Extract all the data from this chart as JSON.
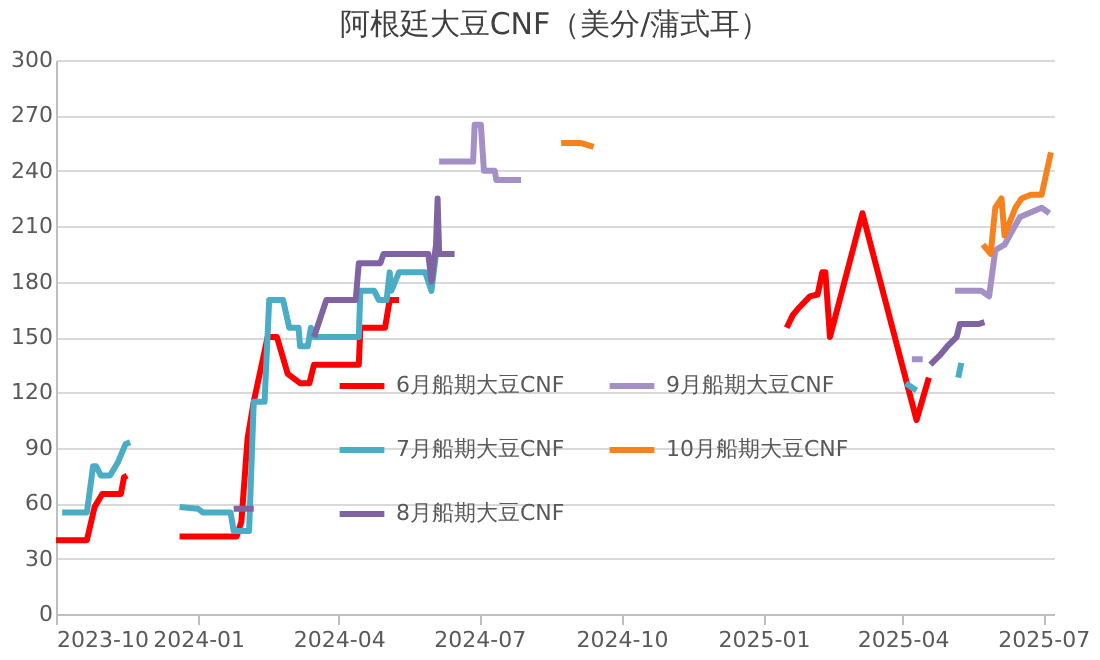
{
  "chart_data": {
    "type": "line",
    "title": "阿根廷大豆CNF（美分/蒲式耳）",
    "xlim": [
      "2023-10-01",
      "2025-07-08"
    ],
    "xticks": [
      "2023-10",
      "2024-01",
      "2024-04",
      "2024-07",
      "2024-10",
      "2025-01",
      "2025-04",
      "2025-07"
    ],
    "ylim": [
      0,
      300
    ],
    "yticks": [
      0,
      30,
      60,
      90,
      120,
      150,
      180,
      210,
      240,
      270,
      300
    ],
    "grid": "y",
    "legend": "bottom",
    "marker": "none",
    "line_style": "solid",
    "series": [
      {
        "name": "6月船期大豆CNF",
        "color": "#ff0000",
        "x": [
          "2023-10-01",
          "2023-10-21",
          "2023-10-26",
          "2023-10-31",
          "2023-11-12",
          "2023-11-14",
          "2023-11-16",
          "2023-11-17",
          "2023-12-20",
          "2024-01-26",
          "2024-01-29",
          "2024-02-02",
          "2024-02-06",
          "2024-02-15",
          "2024-02-21",
          "2024-02-28",
          "2024-03-07",
          "2024-03-13",
          "2024-03-16",
          "2024-04-14",
          "2024-04-15",
          "2024-05-01",
          "2024-05-04",
          "2024-05-10",
          "2024-05-11",
          "2025-01-16",
          "2025-01-20",
          "2025-01-23",
          "2025-01-31",
          "2025-02-05",
          "2025-02-08",
          "2025-02-10",
          "2025-02-13",
          "2025-03-06",
          "2025-04-10",
          "2025-04-18"
        ],
        "values": [
          40,
          40,
          58,
          65,
          65,
          74,
          75,
          null,
          42,
          42,
          50,
          95,
          115,
          150,
          150,
          130,
          125,
          125,
          135,
          135,
          155,
          155,
          170,
          170,
          null,
          155,
          162,
          165,
          172,
          173,
          185,
          185,
          150,
          217,
          105,
          128
        ]
      },
      {
        "name": "7月船期大豆CNF",
        "color": "#4bacc6",
        "x": [
          "2023-10-05",
          "2023-10-21",
          "2023-10-25",
          "2023-10-27",
          "2023-10-30",
          "2023-11-05",
          "2023-11-10",
          "2023-11-15",
          "2023-11-18",
          "2023-11-19",
          "2023-12-20",
          "2024-01-01",
          "2024-01-04",
          "2024-01-22",
          "2024-01-24",
          "2024-02-03",
          "2024-02-06",
          "2024-02-13",
          "2024-02-16",
          "2024-02-25",
          "2024-02-29",
          "2024-03-06",
          "2024-03-07",
          "2024-03-12",
          "2024-03-14",
          "2024-03-16",
          "2024-04-14",
          "2024-04-15",
          "2024-04-24",
          "2024-04-27",
          "2024-05-02",
          "2024-05-04",
          "2024-05-05",
          "2024-05-10",
          "2024-05-27",
          "2024-05-31",
          "2024-06-03",
          "2024-06-04",
          "2025-04-03",
          "2025-04-10",
          "2025-04-11",
          "2025-05-07",
          "2025-05-09"
        ],
        "values": [
          55,
          55,
          80,
          80,
          75,
          75,
          82,
          92,
          93,
          null,
          58,
          57,
          55,
          55,
          45,
          45,
          115,
          115,
          170,
          170,
          155,
          155,
          145,
          145,
          155,
          150,
          150,
          175,
          175,
          170,
          170,
          185,
          175,
          185,
          185,
          175,
          195,
          null,
          125,
          121,
          null,
          128,
          136
        ]
      },
      {
        "name": "8月船期大豆CNF",
        "color": "#8064a2",
        "x": [
          "2024-01-24",
          "2024-02-06",
          "2024-02-07",
          "2024-03-16",
          "2024-03-24",
          "2024-04-12",
          "2024-04-14",
          "2024-04-28",
          "2024-04-30",
          "2024-05-29",
          "2024-05-31",
          "2024-06-03",
          "2024-06-04",
          "2024-06-05",
          "2024-06-15",
          "2024-06-16",
          "2025-04-19",
          "2025-04-25",
          "2025-04-30",
          "2025-05-06",
          "2025-05-08",
          "2025-05-20",
          "2025-05-24"
        ],
        "values": [
          57,
          57,
          null,
          150,
          170,
          170,
          190,
          190,
          195,
          195,
          180,
          200,
          225,
          195,
          195,
          null,
          135,
          140,
          145,
          150,
          157,
          157,
          158
        ]
      },
      {
        "name": "9月船期大豆CNF",
        "color": "#a48fc7",
        "x": [
          "2024-06-05",
          "2024-06-27",
          "2024-06-28",
          "2024-07-02",
          "2024-07-04",
          "2024-07-11",
          "2024-07-12",
          "2024-07-28",
          "2024-07-29",
          "2025-04-07",
          "2025-04-14",
          "2025-04-15",
          "2025-05-05",
          "2025-05-22",
          "2025-05-27",
          "2025-05-31",
          "2025-06-06",
          "2025-06-16",
          "2025-06-30",
          "2025-07-05"
        ],
        "values": [
          245,
          245,
          265,
          265,
          240,
          240,
          235,
          235,
          null,
          138,
          138,
          null,
          175,
          175,
          172,
          197,
          200,
          215,
          220,
          217
        ]
      },
      {
        "name": "10月船期大豆CNF",
        "color": "#f6821f",
        "x": [
          "2024-08-23",
          "2024-09-05",
          "2024-09-13",
          "2024-09-14",
          "2025-05-23",
          "2025-05-28",
          "2025-05-31",
          "2025-06-04",
          "2025-06-06",
          "2025-06-13",
          "2025-06-17",
          "2025-06-23",
          "2025-06-30",
          "2025-07-06"
        ],
        "values": [
          255,
          255,
          253,
          null,
          200,
          195,
          220,
          225,
          205,
          220,
          225,
          227,
          227,
          250
        ]
      }
    ]
  }
}
